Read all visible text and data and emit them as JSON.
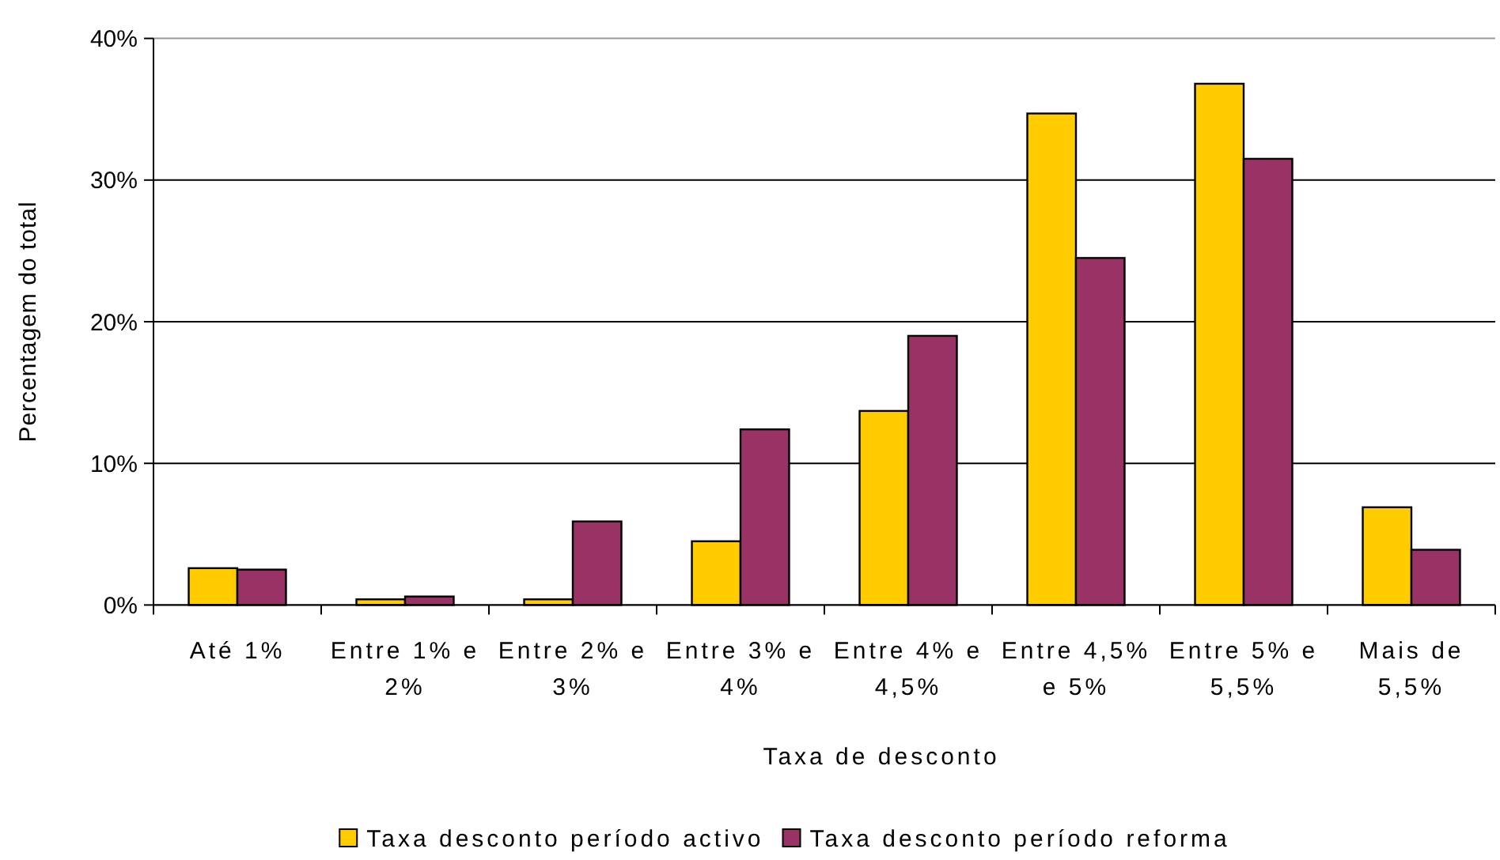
{
  "chart_data": {
    "type": "bar",
    "categories": [
      "Até 1%",
      "Entre 1% e 2%",
      "Entre 2% e 3%",
      "Entre 3% e 4%",
      "Entre 4% e 4,5%",
      "Entre 4,5% e 5%",
      "Entre 5% e 5,5%",
      "Mais de 5,5%"
    ],
    "series": [
      {
        "name": "Taxa desconto período activo",
        "color": "#ffcc00",
        "values": [
          2.6,
          0.4,
          0.4,
          4.5,
          13.7,
          34.7,
          36.8,
          6.9
        ]
      },
      {
        "name": "Taxa desconto período reforma",
        "color": "#993366",
        "values": [
          2.5,
          0.6,
          5.9,
          12.4,
          19.0,
          24.5,
          31.5,
          3.9
        ]
      }
    ],
    "xlabel": "Taxa de desconto",
    "ylabel": "Percentagem do total",
    "ylim": [
      0,
      40
    ],
    "yticks": [
      {
        "value": 0,
        "label": "0%"
      },
      {
        "value": 10,
        "label": "10%"
      },
      {
        "value": 20,
        "label": "20%"
      },
      {
        "value": 30,
        "label": "30%"
      },
      {
        "value": 40,
        "label": "40%"
      }
    ],
    "grid": "y",
    "legend": "bottom"
  }
}
